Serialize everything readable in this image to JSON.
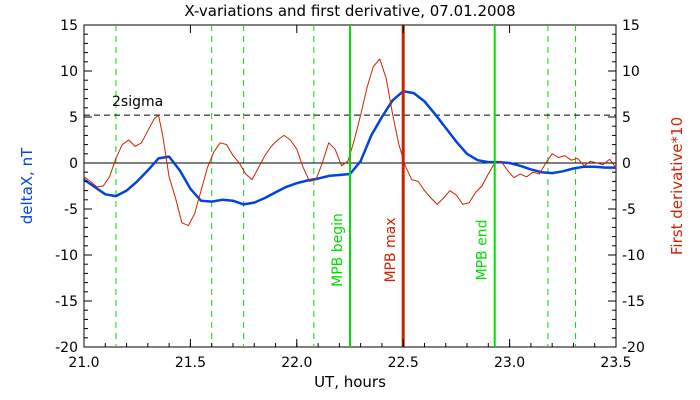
{
  "chart_data": {
    "type": "line",
    "title": "X-variations and first derivative, 07.01.2008",
    "xlabel": "UT, hours",
    "ylabel_left": "deltaX, nT",
    "ylabel_right": "First derivative*10",
    "xlim": [
      21.0,
      23.5
    ],
    "ylim": [
      -20,
      15
    ],
    "xticks": [
      "21.0",
      "21.5",
      "22.0",
      "22.5",
      "23.0",
      "23.5"
    ],
    "xtick_values": [
      21.0,
      21.5,
      22.0,
      22.5,
      23.0,
      23.5
    ],
    "yticks": [
      15,
      10,
      5,
      0,
      -5,
      -10,
      -15,
      -20
    ],
    "yticks_left_labels": [
      "15",
      "10",
      "5",
      "0",
      "-5",
      "-10",
      "-15",
      "-20"
    ],
    "yticks_right_labels": [
      "15",
      "10",
      "5",
      "0",
      "-5",
      "-10",
      "-15",
      "-20"
    ],
    "sigma_level": 5.2,
    "sigma_label": "2sigma",
    "dashed_verticals": [
      21.15,
      21.6,
      21.75,
      22.08,
      23.18,
      23.31
    ],
    "markers": [
      {
        "label": "MPB begin",
        "x": 22.25,
        "color": "#00dd00"
      },
      {
        "label": "MPB max",
        "x": 22.5,
        "color": "#cc2200"
      },
      {
        "label": "MPB end",
        "x": 22.93,
        "color": "#00dd00"
      }
    ],
    "series": [
      {
        "color": "#0044dd",
        "axis": "left",
        "x": [
          21.0,
          21.05,
          21.1,
          21.15,
          21.2,
          21.25,
          21.3,
          21.35,
          21.4,
          21.45,
          21.5,
          21.55,
          21.6,
          21.65,
          21.7,
          21.75,
          21.8,
          21.85,
          21.9,
          21.95,
          22.0,
          22.05,
          22.1,
          22.15,
          22.2,
          22.25,
          22.3,
          22.35,
          22.4,
          22.45,
          22.5,
          22.55,
          22.6,
          22.65,
          22.7,
          22.75,
          22.8,
          22.85,
          22.9,
          22.95,
          23.0,
          23.05,
          23.1,
          23.15,
          23.2,
          23.25,
          23.3,
          23.35,
          23.4,
          23.45,
          23.5
        ],
        "values": [
          -1.8,
          -2.6,
          -3.4,
          -3.6,
          -3.0,
          -2.0,
          -0.8,
          0.5,
          0.7,
          -0.8,
          -2.8,
          -4.1,
          -4.2,
          -4.0,
          -4.1,
          -4.5,
          -4.3,
          -3.8,
          -3.2,
          -2.6,
          -2.2,
          -1.9,
          -1.7,
          -1.4,
          -1.3,
          -1.2,
          0.2,
          3.0,
          5.0,
          6.8,
          7.8,
          7.6,
          6.7,
          5.3,
          3.8,
          2.3,
          1.0,
          0.3,
          0.1,
          0.1,
          0.0,
          -0.3,
          -0.7,
          -1.0,
          -1.1,
          -0.9,
          -0.6,
          -0.4,
          -0.4,
          -0.5,
          -0.5
        ]
      },
      {
        "color": "#cc2200",
        "axis": "right",
        "x": [
          21.0,
          21.03,
          21.06,
          21.09,
          21.12,
          21.15,
          21.18,
          21.21,
          21.24,
          21.27,
          21.3,
          21.33,
          21.35,
          21.37,
          21.4,
          21.43,
          21.46,
          21.49,
          21.52,
          21.55,
          21.58,
          21.61,
          21.64,
          21.67,
          21.7,
          21.73,
          21.76,
          21.79,
          21.82,
          21.85,
          21.88,
          21.91,
          21.94,
          21.97,
          22.0,
          22.03,
          22.06,
          22.09,
          22.12,
          22.15,
          22.18,
          22.21,
          22.24,
          22.27,
          22.3,
          22.33,
          22.36,
          22.39,
          22.42,
          22.45,
          22.48,
          22.51,
          22.54,
          22.57,
          22.6,
          22.63,
          22.66,
          22.69,
          22.72,
          22.75,
          22.78,
          22.81,
          22.84,
          22.87,
          22.9,
          22.93,
          22.96,
          22.99,
          23.02,
          23.05,
          23.08,
          23.11,
          23.14,
          23.17,
          23.2,
          23.23,
          23.26,
          23.29,
          23.32,
          23.35,
          23.38,
          23.41,
          23.44,
          23.47,
          23.5
        ],
        "values": [
          -1.5,
          -2.0,
          -2.6,
          -2.5,
          -1.5,
          0.5,
          2.0,
          2.5,
          1.8,
          2.2,
          3.5,
          4.8,
          5.2,
          3.0,
          -1.5,
          -3.8,
          -6.5,
          -6.8,
          -5.5,
          -3.0,
          -0.5,
          1.2,
          2.2,
          2.0,
          0.8,
          0.0,
          -1.2,
          -1.8,
          -0.5,
          0.8,
          1.8,
          2.5,
          3.0,
          2.5,
          1.5,
          -0.5,
          -2.0,
          -1.8,
          0.0,
          2.2,
          1.5,
          -0.3,
          0.2,
          2.5,
          5.2,
          8.2,
          10.5,
          11.3,
          9.2,
          5.3,
          2.0,
          -0.3,
          -1.8,
          -2.0,
          -3.0,
          -3.8,
          -4.5,
          -3.8,
          -3.0,
          -3.5,
          -4.5,
          -4.3,
          -3.2,
          -2.5,
          -1.2,
          0.0,
          0.2,
          -0.8,
          -1.6,
          -1.2,
          -1.5,
          -1.0,
          -1.2,
          0.0,
          1.0,
          0.6,
          0.8,
          0.3,
          0.5,
          -0.3,
          0.2,
          0.0,
          -0.2,
          0.4,
          -0.5
        ]
      }
    ],
    "colors": {
      "left_axis_label": "#0044dd",
      "right_axis_label": "#cc2200",
      "dashed_verticals": "#00dd00",
      "sigma_line": "#000000",
      "zero_line": "#000000"
    }
  }
}
